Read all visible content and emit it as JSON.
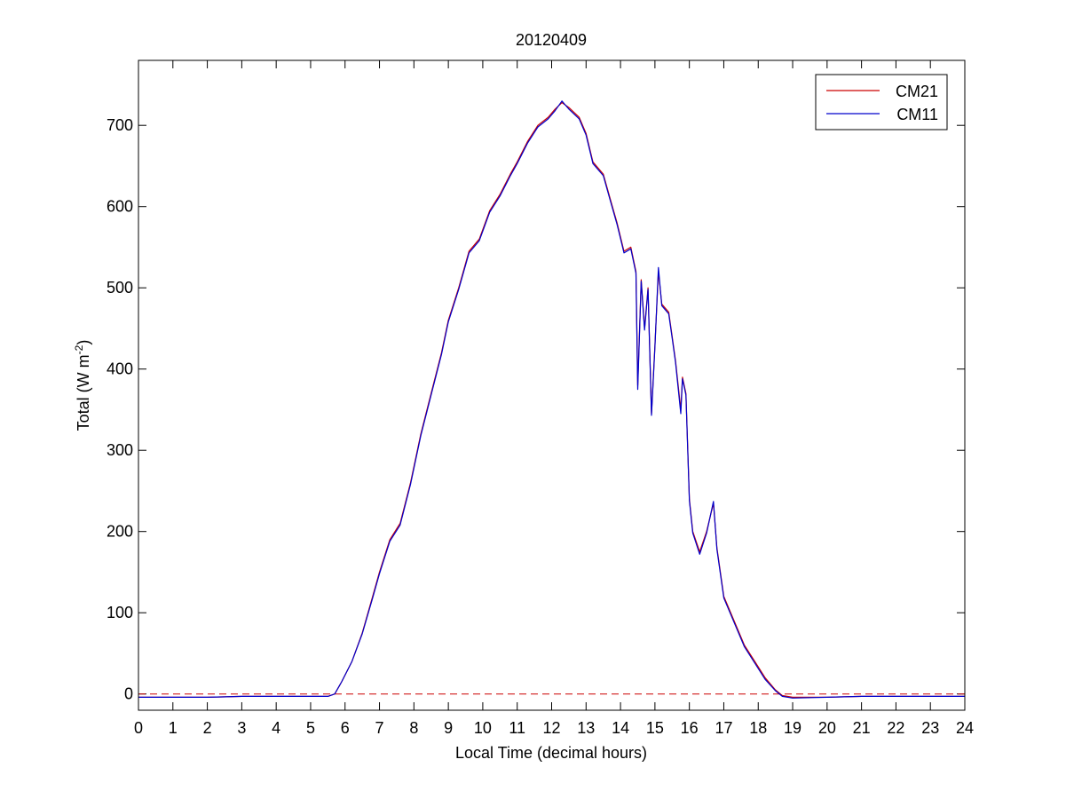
{
  "chart_data": {
    "type": "line",
    "title": "20120409",
    "xlabel": "Local Time (decimal hours)",
    "ylabel": {
      "prefix": "Total (W m",
      "superscript": "-2",
      "suffix": ")"
    },
    "xlim": [
      0,
      24
    ],
    "ylim": [
      -20,
      780
    ],
    "xticks": [
      0,
      1,
      2,
      3,
      4,
      5,
      6,
      7,
      8,
      9,
      10,
      11,
      12,
      13,
      14,
      15,
      16,
      17,
      18,
      19,
      20,
      21,
      22,
      23,
      24
    ],
    "yticks": [
      0,
      100,
      200,
      300,
      400,
      500,
      600,
      700
    ],
    "grid": false,
    "legend": "top-right",
    "reference_line": {
      "y": 0,
      "style": "dashed",
      "color": "#cc0000"
    },
    "series": [
      {
        "name": "CM21",
        "color": "#cc0000",
        "points": [
          [
            0,
            -4
          ],
          [
            1,
            -4
          ],
          [
            2,
            -4
          ],
          [
            3,
            -3
          ],
          [
            4,
            -3
          ],
          [
            5,
            -3
          ],
          [
            5.5,
            -3
          ],
          [
            5.7,
            0
          ],
          [
            5.9,
            15
          ],
          [
            6.2,
            40
          ],
          [
            6.5,
            75
          ],
          [
            6.8,
            120
          ],
          [
            7.0,
            150
          ],
          [
            7.3,
            190
          ],
          [
            7.6,
            210
          ],
          [
            7.9,
            260
          ],
          [
            8.2,
            320
          ],
          [
            8.5,
            370
          ],
          [
            8.8,
            420
          ],
          [
            9.0,
            460
          ],
          [
            9.3,
            500
          ],
          [
            9.6,
            545
          ],
          [
            9.9,
            560
          ],
          [
            10.2,
            595
          ],
          [
            10.5,
            615
          ],
          [
            10.8,
            640
          ],
          [
            11.0,
            655
          ],
          [
            11.3,
            680
          ],
          [
            11.6,
            700
          ],
          [
            11.9,
            710
          ],
          [
            12.1,
            720
          ],
          [
            12.3,
            728
          ],
          [
            12.5,
            722
          ],
          [
            12.8,
            710
          ],
          [
            13.0,
            690
          ],
          [
            13.2,
            655
          ],
          [
            13.5,
            640
          ],
          [
            13.7,
            610
          ],
          [
            13.9,
            580
          ],
          [
            14.1,
            545
          ],
          [
            14.3,
            550
          ],
          [
            14.45,
            520
          ],
          [
            14.5,
            380
          ],
          [
            14.6,
            510
          ],
          [
            14.7,
            450
          ],
          [
            14.8,
            500
          ],
          [
            14.9,
            345
          ],
          [
            15.0,
            430
          ],
          [
            15.1,
            520
          ],
          [
            15.2,
            480
          ],
          [
            15.4,
            470
          ],
          [
            15.5,
            440
          ],
          [
            15.6,
            410
          ],
          [
            15.75,
            350
          ],
          [
            15.8,
            390
          ],
          [
            15.9,
            370
          ],
          [
            16.0,
            240
          ],
          [
            16.1,
            200
          ],
          [
            16.3,
            175
          ],
          [
            16.5,
            200
          ],
          [
            16.7,
            235
          ],
          [
            16.8,
            180
          ],
          [
            17.0,
            120
          ],
          [
            17.3,
            90
          ],
          [
            17.6,
            60
          ],
          [
            17.9,
            40
          ],
          [
            18.2,
            20
          ],
          [
            18.5,
            5
          ],
          [
            18.7,
            -2
          ],
          [
            19.0,
            -4
          ],
          [
            20,
            -4
          ],
          [
            21,
            -3
          ],
          [
            22,
            -3
          ],
          [
            23,
            -3
          ],
          [
            24,
            -3
          ]
        ]
      },
      {
        "name": "CM11",
        "color": "#0000cc",
        "points": [
          [
            0,
            -4
          ],
          [
            1,
            -4
          ],
          [
            2,
            -4
          ],
          [
            3,
            -3
          ],
          [
            4,
            -3
          ],
          [
            5,
            -3
          ],
          [
            5.5,
            -3
          ],
          [
            5.7,
            0
          ],
          [
            5.9,
            15
          ],
          [
            6.2,
            40
          ],
          [
            6.5,
            74
          ],
          [
            6.8,
            118
          ],
          [
            7.0,
            148
          ],
          [
            7.3,
            188
          ],
          [
            7.6,
            208
          ],
          [
            7.9,
            258
          ],
          [
            8.2,
            318
          ],
          [
            8.5,
            368
          ],
          [
            8.8,
            418
          ],
          [
            9.0,
            458
          ],
          [
            9.3,
            498
          ],
          [
            9.6,
            543
          ],
          [
            9.9,
            558
          ],
          [
            10.2,
            593
          ],
          [
            10.5,
            613
          ],
          [
            10.8,
            638
          ],
          [
            11.0,
            653
          ],
          [
            11.3,
            678
          ],
          [
            11.6,
            698
          ],
          [
            11.9,
            708
          ],
          [
            12.1,
            718
          ],
          [
            12.3,
            730
          ],
          [
            12.5,
            720
          ],
          [
            12.8,
            708
          ],
          [
            13.0,
            688
          ],
          [
            13.2,
            653
          ],
          [
            13.5,
            638
          ],
          [
            13.7,
            608
          ],
          [
            13.9,
            578
          ],
          [
            14.1,
            543
          ],
          [
            14.3,
            548
          ],
          [
            14.45,
            518
          ],
          [
            14.5,
            375
          ],
          [
            14.6,
            508
          ],
          [
            14.7,
            448
          ],
          [
            14.8,
            498
          ],
          [
            14.9,
            343
          ],
          [
            15.0,
            428
          ],
          [
            15.1,
            525
          ],
          [
            15.2,
            478
          ],
          [
            15.4,
            468
          ],
          [
            15.5,
            438
          ],
          [
            15.6,
            408
          ],
          [
            15.75,
            345
          ],
          [
            15.8,
            388
          ],
          [
            15.9,
            368
          ],
          [
            16.0,
            238
          ],
          [
            16.1,
            198
          ],
          [
            16.3,
            172
          ],
          [
            16.5,
            198
          ],
          [
            16.7,
            237
          ],
          [
            16.8,
            178
          ],
          [
            17.0,
            118
          ],
          [
            17.3,
            88
          ],
          [
            17.6,
            58
          ],
          [
            17.9,
            38
          ],
          [
            18.2,
            18
          ],
          [
            18.5,
            4
          ],
          [
            18.7,
            -3
          ],
          [
            19.0,
            -5
          ],
          [
            20,
            -4
          ],
          [
            21,
            -3
          ],
          [
            22,
            -3
          ],
          [
            23,
            -3
          ],
          [
            24,
            -3
          ]
        ]
      }
    ]
  }
}
